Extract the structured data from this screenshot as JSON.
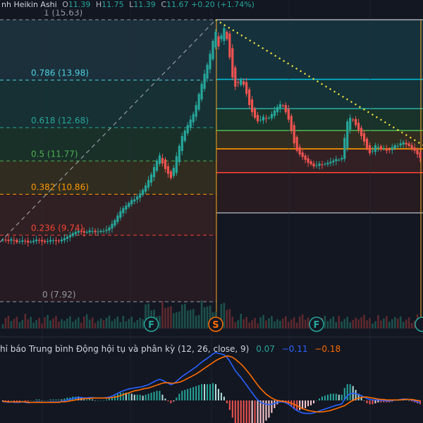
{
  "header": {
    "title": "nh Heikin Ashi",
    "o_label": "O",
    "o_value": "11.39",
    "h_label": "H",
    "h_value": "11.75",
    "l_label": "L",
    "l_value": "11.39",
    "c_label": "C",
    "c_value": "11.67",
    "change": "+0.20 (+1.74%)"
  },
  "macd_legend": {
    "name": "hỉ báo Trung bình Động hội tụ và phân kỳ (12, 26, close, 9)",
    "v1": "0.07",
    "v2": "−0.11",
    "v3": "−0.18"
  },
  "colors": {
    "up": "#26a69a",
    "down": "#ef5350",
    "background": "#131722",
    "macd": "#2962ff",
    "signal": "#ff6d00",
    "trendline": "#ffeb3b"
  },
  "chart_data": {
    "type": "candlestick",
    "fib_left": {
      "levels": [
        {
          "ratio": "1",
          "price": 15.63,
          "label": "1 (15.63)",
          "color": "#9598a1"
        },
        {
          "ratio": "0.786",
          "price": 13.98,
          "label": "0.786 (13.98)",
          "color": "#4dd0e1"
        },
        {
          "ratio": "0.618",
          "price": 12.68,
          "label": "0.618 (12.68)",
          "color": "#26a69a"
        },
        {
          "ratio": "0.5",
          "price": 11.77,
          "label": "0.5 (11.77)",
          "color": "#4caf50"
        },
        {
          "ratio": "0.382",
          "price": 10.86,
          "label": "0.382 (10.86)",
          "color": "#ff9800"
        },
        {
          "ratio": "0.236",
          "price": 9.74,
          "label": "0.236 (9.74)",
          "color": "#f44336"
        },
        {
          "ratio": "0",
          "price": 7.92,
          "label": "0 (7.92)",
          "color": "#9598a1"
        }
      ]
    },
    "fib_right_prices": [
      15.63,
      14.0,
      13.2,
      12.6,
      12.1,
      11.45,
      10.35
    ],
    "fib_right_colors": [
      "#9598a1",
      "#00bcd4",
      "#26a69a",
      "#4caf50",
      "#ff9800",
      "#f44336",
      "#9598a1"
    ],
    "trendline": {
      "from_index": 0.0,
      "from_price": 15.63,
      "to_index": 1.0,
      "to_price": 12.2
    },
    "candles": [
      9.62,
      9.6,
      9.58,
      9.63,
      9.59,
      9.55,
      9.57,
      9.6,
      9.58,
      9.54,
      9.56,
      9.59,
      9.62,
      9.6,
      9.57,
      9.55,
      9.58,
      9.61,
      9.6,
      9.58,
      9.57,
      9.62,
      9.66,
      9.7,
      9.74,
      9.79,
      9.83,
      9.86,
      9.84,
      9.81,
      9.83,
      9.87,
      9.85,
      9.82,
      9.84,
      9.86,
      9.85,
      9.89,
      9.95,
      10.05,
      10.15,
      10.28,
      10.4,
      10.48,
      10.55,
      10.62,
      10.7,
      10.72,
      10.8,
      10.88,
      10.98,
      11.1,
      11.25,
      11.4,
      11.6,
      11.78,
      11.92,
      11.7,
      11.55,
      11.42,
      11.3,
      11.58,
      11.9,
      12.18,
      12.45,
      12.6,
      12.75,
      12.9,
      13.05,
      13.3,
      13.6,
      13.88,
      14.15,
      14.4,
      14.7,
      15.05,
      15.3,
      14.9,
      15.2,
      15.4,
      15.1,
      14.6,
      14.05,
      13.8,
      13.9,
      14.0,
      13.85,
      13.6,
      13.3,
      13.1,
      12.95,
      12.85,
      12.9,
      12.98,
      12.92,
      12.95,
      13.05,
      13.15,
      13.25,
      13.32,
      13.28,
      13.1,
      12.9,
      12.6,
      12.25,
      12.05,
      11.95,
      11.88,
      11.8,
      11.72,
      11.68,
      11.62,
      11.65,
      11.7,
      11.66,
      11.69,
      11.72,
      11.75,
      11.78,
      11.82,
      11.8,
      11.85,
      12.4,
      12.85,
      12.95,
      12.88,
      12.75,
      12.6,
      12.45,
      12.3,
      12.1,
      11.98,
      12.05,
      12.2,
      12.15,
      12.08,
      12.12,
      12.05,
      12.08,
      12.15,
      12.2,
      12.18,
      12.25,
      12.28,
      12.22,
      12.18,
      12.1,
      12.05,
      11.95,
      11.85
    ],
    "macd": [
      -0.03,
      -0.03,
      -0.04,
      -0.03,
      -0.04,
      -0.04,
      -0.04,
      -0.03,
      -0.04,
      -0.05,
      -0.04,
      -0.04,
      -0.03,
      -0.03,
      -0.04,
      -0.04,
      -0.04,
      -0.03,
      -0.03,
      -0.03,
      -0.03,
      -0.02,
      -0.01,
      0.01,
      0.02,
      0.04,
      0.05,
      0.06,
      0.06,
      0.05,
      0.05,
      0.06,
      0.06,
      0.05,
      0.05,
      0.05,
      0.05,
      0.06,
      0.07,
      0.09,
      0.12,
      0.15,
      0.18,
      0.2,
      0.22,
      0.24,
      0.25,
      0.26,
      0.27,
      0.28,
      0.29,
      0.31,
      0.33,
      0.36,
      0.39,
      0.42,
      0.44,
      0.42,
      0.39,
      0.36,
      0.33,
      0.35,
      0.4,
      0.45,
      0.5,
      0.54,
      0.58,
      0.62,
      0.66,
      0.7,
      0.75,
      0.8,
      0.84,
      0.88,
      0.92,
      0.97,
      1.0,
      0.98,
      0.97,
      0.95,
      0.9,
      0.82,
      0.72,
      0.62,
      0.55,
      0.48,
      0.4,
      0.32,
      0.24,
      0.16,
      0.08,
      0.01,
      -0.04,
      -0.06,
      -0.08,
      -0.09,
      -0.08,
      -0.06,
      -0.04,
      -0.03,
      -0.03,
      -0.05,
      -0.08,
      -0.12,
      -0.17,
      -0.21,
      -0.24,
      -0.26,
      -0.27,
      -0.27,
      -0.27,
      -0.26,
      -0.24,
      -0.22,
      -0.2,
      -0.18,
      -0.16,
      -0.14,
      -0.12,
      -0.1,
      -0.09,
      -0.07,
      0.02,
      0.1,
      0.14,
      0.15,
      0.14,
      0.12,
      0.1,
      0.07,
      0.04,
      0.02,
      0.01,
      0.01,
      0.01,
      0.0,
      0.0,
      -0.01,
      -0.01,
      0.0,
      0.01,
      0.01,
      0.02,
      0.03,
      0.03,
      0.02,
      0.01,
      -0.01,
      -0.03,
      -0.05
    ],
    "signal": [
      -0.02,
      -0.02,
      -0.03,
      -0.03,
      -0.03,
      -0.03,
      -0.03,
      -0.03,
      -0.03,
      -0.04,
      -0.04,
      -0.04,
      -0.04,
      -0.04,
      -0.04,
      -0.04,
      -0.04,
      -0.04,
      -0.04,
      -0.04,
      -0.04,
      -0.03,
      -0.03,
      -0.02,
      -0.01,
      0.0,
      0.01,
      0.02,
      0.03,
      0.04,
      0.04,
      0.04,
      0.05,
      0.05,
      0.05,
      0.05,
      0.05,
      0.05,
      0.05,
      0.06,
      0.07,
      0.08,
      0.1,
      0.12,
      0.14,
      0.16,
      0.18,
      0.2,
      0.21,
      0.22,
      0.24,
      0.25,
      0.26,
      0.28,
      0.3,
      0.32,
      0.34,
      0.36,
      0.37,
      0.37,
      0.36,
      0.36,
      0.37,
      0.38,
      0.4,
      0.43,
      0.46,
      0.49,
      0.52,
      0.55,
      0.59,
      0.63,
      0.67,
      0.71,
      0.75,
      0.79,
      0.83,
      0.86,
      0.89,
      0.91,
      0.93,
      0.92,
      0.9,
      0.86,
      0.81,
      0.76,
      0.7,
      0.63,
      0.56,
      0.48,
      0.4,
      0.32,
      0.25,
      0.19,
      0.13,
      0.09,
      0.05,
      0.02,
      0.0,
      -0.01,
      -0.02,
      -0.03,
      -0.04,
      -0.06,
      -0.08,
      -0.11,
      -0.14,
      -0.17,
      -0.19,
      -0.21,
      -0.22,
      -0.23,
      -0.24,
      -0.24,
      -0.24,
      -0.23,
      -0.22,
      -0.21,
      -0.19,
      -0.17,
      -0.15,
      -0.13,
      -0.11,
      -0.07,
      -0.03,
      0.0,
      0.03,
      0.05,
      0.06,
      0.07,
      0.07,
      0.06,
      0.05,
      0.04,
      0.03,
      0.02,
      0.02,
      0.01,
      0.01,
      0.01,
      0.01,
      0.01,
      0.01,
      0.02,
      0.02,
      0.02,
      0.02,
      0.01,
      0.0,
      -0.01
    ],
    "volume_markers": [
      {
        "letter": "F",
        "index": 53,
        "color": "#26a69a"
      },
      {
        "letter": "S",
        "index": 76,
        "color": "#ff6d00"
      },
      {
        "letter": "F",
        "index": 112,
        "color": "#26a69a"
      }
    ]
  }
}
